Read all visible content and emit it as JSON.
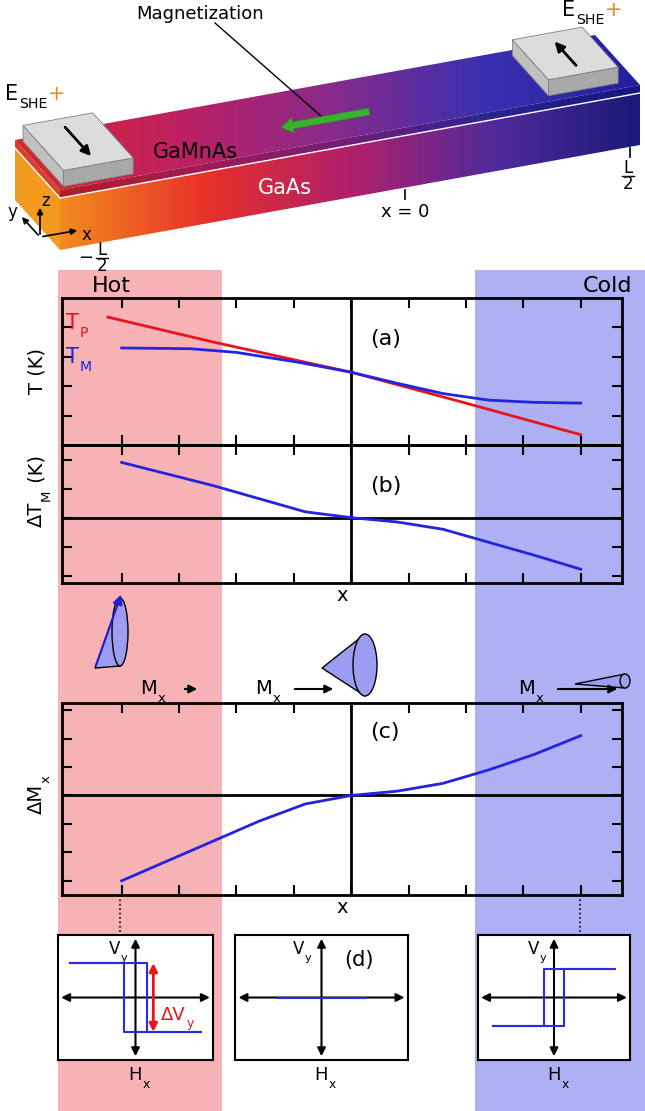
{
  "schematic": {
    "magnetization": "Magnetization",
    "layers": [
      "GaMnAs",
      "GaAs"
    ],
    "contact_label": {
      "base": "E",
      "sub": "SHE",
      "suffix": "+"
    },
    "axes_labels": [
      "y",
      "z",
      "x"
    ],
    "positions": {
      "left": {
        "sign": "−",
        "numerator": "L",
        "denominator": "2"
      },
      "center": "x = 0",
      "right": {
        "numerator": "L",
        "denominator": "2"
      }
    }
  },
  "regions": [
    "Hot",
    "Cold"
  ],
  "precession": {
    "labels": [
      {
        "base": "M",
        "sub": "x"
      },
      {
        "base": "M",
        "sub": "x"
      },
      {
        "base": "M",
        "sub": "x"
      }
    ]
  },
  "chart_data": [
    {
      "type": "line",
      "label": "(a)",
      "ylabel": "T (K)",
      "xlim": [
        -0.63,
        0.59
      ],
      "xticks": [
        -0.5,
        -0.375,
        -0.25,
        -0.125,
        0,
        0.125,
        0.25,
        0.375,
        0.5
      ],
      "ylim": [
        0,
        10
      ],
      "yticks": [
        2,
        4,
        6,
        8
      ],
      "tick_labels": false,
      "vlines": [
        0
      ],
      "series": [
        {
          "name": {
            "base": "T",
            "sub": "P"
          },
          "color": "#e8141c",
          "x": [
            -0.53,
            -0.3,
            0,
            0.25,
            0.5
          ],
          "values": [
            8.7,
            7.0,
            4.95,
            2.85,
            0.7
          ]
        },
        {
          "name": {
            "base": "T",
            "sub": "M"
          },
          "color": "#2323e0",
          "x": [
            -0.5,
            -0.35,
            -0.25,
            -0.11,
            0,
            0.1,
            0.2,
            0.3,
            0.4,
            0.5
          ],
          "values": [
            6.6,
            6.55,
            6.3,
            5.6,
            4.95,
            4.2,
            3.5,
            3.05,
            2.9,
            2.85
          ]
        }
      ]
    },
    {
      "type": "line",
      "label": "(b)",
      "ylabel": {
        "base": "ΔT",
        "sub": "M",
        "suffix": " (K)"
      },
      "xlabel": "x",
      "xlim": [
        -0.63,
        0.59
      ],
      "xticks": [
        -0.5,
        -0.375,
        -0.25,
        -0.125,
        0,
        0.125,
        0.25,
        0.375,
        0.5
      ],
      "ylim": [
        -4.5,
        5
      ],
      "yticks": [
        -4,
        -2,
        0,
        2,
        4
      ],
      "tick_labels": false,
      "vlines": [
        0
      ],
      "hlines": [
        0
      ],
      "series": [
        {
          "color": "#2323e0",
          "x": [
            -0.5,
            -0.4,
            -0.3,
            -0.2,
            -0.1,
            0,
            0.1,
            0.2,
            0.3,
            0.4,
            0.5
          ],
          "values": [
            3.8,
            3.0,
            2.2,
            1.3,
            0.4,
            0,
            -0.3,
            -0.8,
            -1.7,
            -2.6,
            -3.55
          ]
        }
      ]
    },
    {
      "type": "line",
      "label": "(c)",
      "ylabel": {
        "base": "ΔM",
        "sub": "x"
      },
      "xlabel": "x",
      "xlim": [
        -0.63,
        0.59
      ],
      "xticks": [
        -0.5,
        -0.375,
        -0.25,
        -0.125,
        0,
        0.125,
        0.25,
        0.375,
        0.5
      ],
      "ylim": [
        -7,
        6.5
      ],
      "yticks": [
        -6,
        -4,
        -2,
        0,
        2,
        4,
        6
      ],
      "tick_labels": false,
      "vlines": [
        0
      ],
      "hlines": [
        0
      ],
      "series": [
        {
          "color": "#2323e0",
          "x": [
            -0.5,
            -0.4,
            -0.3,
            -0.2,
            -0.1,
            0,
            0.1,
            0.2,
            0.3,
            0.4,
            0.5
          ],
          "values": [
            -6.0,
            -4.6,
            -3.2,
            -1.8,
            -0.6,
            0,
            0.3,
            0.85,
            1.8,
            2.9,
            4.2
          ]
        }
      ]
    },
    {
      "type": "hysteresis",
      "xlabel": {
        "base": "H",
        "sub": "x"
      },
      "ylabel": {
        "base": "V",
        "sub": "y"
      },
      "xlim": [
        -1,
        1
      ],
      "ylim": [
        -1,
        1
      ],
      "tick_labels": false,
      "color": "#2a2ae0",
      "coercive": 0.15,
      "amplitude": -0.55,
      "sweep": 0.85,
      "annotation": {
        "text": {
          "base": "ΔV",
          "sub": "y"
        },
        "color": "#e8141c"
      }
    },
    {
      "type": "hysteresis",
      "label": "(d)",
      "xlabel": {
        "base": "H",
        "sub": "x"
      },
      "ylabel": {
        "base": "V",
        "sub": "y"
      },
      "xlim": [
        -1,
        1
      ],
      "ylim": [
        -1,
        1
      ],
      "tick_labels": false,
      "color": "#2a2ae0",
      "coercive": 0,
      "amplitude": 0,
      "sweep": 0.5
    },
    {
      "type": "hysteresis",
      "xlabel": {
        "base": "H",
        "sub": "x"
      },
      "ylabel": {
        "base": "V",
        "sub": "y"
      },
      "xlim": [
        -1,
        1
      ],
      "ylim": [
        -1,
        1
      ],
      "tick_labels": false,
      "color": "#2a2ae0",
      "coercive": 0.13,
      "amplitude": 0.45,
      "sweep": 0.8
    }
  ]
}
